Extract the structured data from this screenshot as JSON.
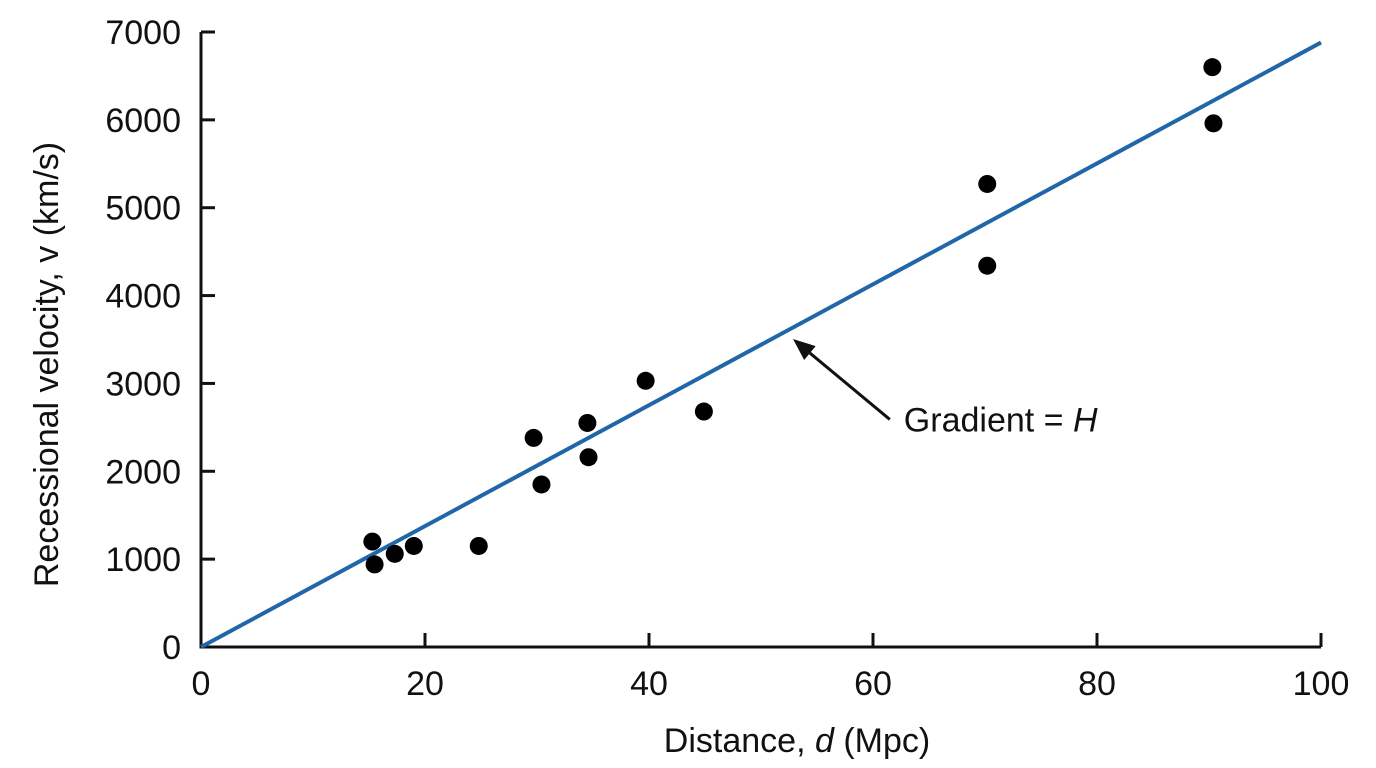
{
  "chart_data": {
    "type": "scatter",
    "xlabel": {
      "prefix": "Distance, ",
      "variable": "d",
      "suffix": " (Mpc)"
    },
    "ylabel": "Recessional velocity, v (km/s)",
    "xlim": [
      0,
      100
    ],
    "ylim": [
      0,
      7000
    ],
    "xticks": [
      0,
      20,
      40,
      60,
      80,
      100
    ],
    "yticks": [
      0,
      1000,
      2000,
      3000,
      4000,
      5000,
      6000,
      7000
    ],
    "grid": false,
    "points": [
      {
        "x": 15.3,
        "y": 1200
      },
      {
        "x": 15.5,
        "y": 940
      },
      {
        "x": 17.3,
        "y": 1060
      },
      {
        "x": 19.0,
        "y": 1150
      },
      {
        "x": 24.8,
        "y": 1150
      },
      {
        "x": 29.7,
        "y": 2380
      },
      {
        "x": 30.4,
        "y": 1850
      },
      {
        "x": 34.5,
        "y": 2550
      },
      {
        "x": 34.6,
        "y": 2160
      },
      {
        "x": 39.7,
        "y": 3030
      },
      {
        "x": 44.9,
        "y": 2680
      },
      {
        "x": 70.2,
        "y": 5270
      },
      {
        "x": 70.2,
        "y": 4340
      },
      {
        "x": 90.3,
        "y": 6600
      },
      {
        "x": 90.4,
        "y": 5960
      }
    ],
    "fit_line": {
      "x": [
        0,
        100
      ],
      "y": [
        0,
        6880
      ],
      "color": "#2166a8"
    },
    "annotation": {
      "prefix": "Gradient = ",
      "variable": "H",
      "points_to": {
        "x": 52.5,
        "y": 3540
      },
      "anchor": {
        "x": 61.5,
        "y": 2590
      }
    }
  }
}
